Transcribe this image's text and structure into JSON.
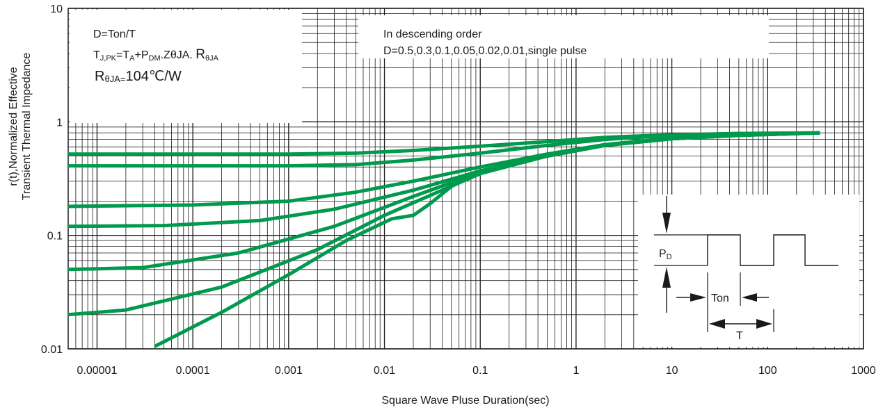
{
  "chart_data": {
    "type": "line",
    "x_scale": "log",
    "y_scale": "log",
    "xlim": [
      5e-06,
      1000
    ],
    "ylim": [
      0.01,
      10
    ],
    "xlabel": "Square Wave Pluse Duration(sec)",
    "ylabel": [
      "r(t),Normalized Effective",
      "Transient Thermal Impedance"
    ],
    "x_tick_labels": [
      "0.00001",
      "0.0001",
      "0.001",
      "0.01",
      "0.1",
      "1",
      "10",
      "100",
      "1000"
    ],
    "y_tick_labels": [
      "0.01",
      "0.1",
      "1",
      "10"
    ],
    "grid": true,
    "line_color": "#00994d",
    "series": [
      {
        "x": [
          5e-06,
          0.0001,
          0.001,
          0.005,
          0.02,
          0.1,
          0.5,
          2,
          10,
          50,
          350
        ],
        "y": [
          0.52,
          0.52,
          0.52,
          0.53,
          0.56,
          0.61,
          0.67,
          0.73,
          0.77,
          0.79,
          0.8
        ]
      },
      {
        "x": [
          5e-06,
          0.0001,
          0.001,
          0.005,
          0.02,
          0.1,
          0.5,
          2,
          10,
          50,
          350
        ],
        "y": [
          0.41,
          0.41,
          0.41,
          0.42,
          0.46,
          0.53,
          0.62,
          0.7,
          0.76,
          0.79,
          0.8
        ]
      },
      {
        "x": [
          5e-06,
          0.0001,
          0.001,
          0.005,
          0.02,
          0.1,
          0.5,
          2,
          10,
          50,
          350
        ],
        "y": [
          0.18,
          0.185,
          0.2,
          0.24,
          0.3,
          0.4,
          0.52,
          0.63,
          0.72,
          0.77,
          0.8
        ]
      },
      {
        "x": [
          5e-06,
          5e-05,
          0.0005,
          0.003,
          0.02,
          0.1,
          0.5,
          2,
          10,
          50,
          350
        ],
        "y": [
          0.12,
          0.122,
          0.135,
          0.17,
          0.25,
          0.37,
          0.5,
          0.62,
          0.71,
          0.76,
          0.8
        ]
      },
      {
        "x": [
          5e-06,
          3e-05,
          0.0003,
          0.003,
          0.02,
          0.1,
          0.5,
          2,
          10,
          50,
          350
        ],
        "y": [
          0.05,
          0.052,
          0.07,
          0.12,
          0.22,
          0.36,
          0.5,
          0.62,
          0.71,
          0.76,
          0.8
        ]
      },
      {
        "x": [
          5e-06,
          2e-05,
          0.0002,
          0.002,
          0.01,
          0.1,
          0.5,
          2,
          10,
          50,
          350
        ],
        "y": [
          0.02,
          0.022,
          0.035,
          0.075,
          0.15,
          0.35,
          0.5,
          0.62,
          0.71,
          0.76,
          0.8
        ]
      },
      {
        "x": [
          4e-05,
          0.0002,
          0.001,
          0.004,
          0.012,
          0.02,
          0.03,
          0.05,
          0.1,
          0.5,
          2,
          10,
          50,
          350
        ],
        "y": [
          0.0105,
          0.021,
          0.045,
          0.09,
          0.14,
          0.15,
          0.19,
          0.27,
          0.37,
          0.5,
          0.62,
          0.71,
          0.76,
          0.8
        ]
      }
    ],
    "annotations": {
      "formula_box": {
        "line1": "D=Ton/T",
        "line2_parts": [
          "T",
          "J,PK",
          "=T",
          "A",
          "+P",
          "DM",
          ".ZθJA. ",
          "R",
          "θJA"
        ],
        "line3_parts": [
          "R",
          "θJA=",
          "104℃/W"
        ]
      },
      "order_box": {
        "line1": "In descending order",
        "line2": "D=0.5,0.3,0.1,0.05,0.02,0.01,single pulse"
      },
      "waveform_box": {
        "pd_label": "P",
        "pd_sub": "D",
        "ton_label": "Ton",
        "t_label": "T"
      }
    }
  }
}
